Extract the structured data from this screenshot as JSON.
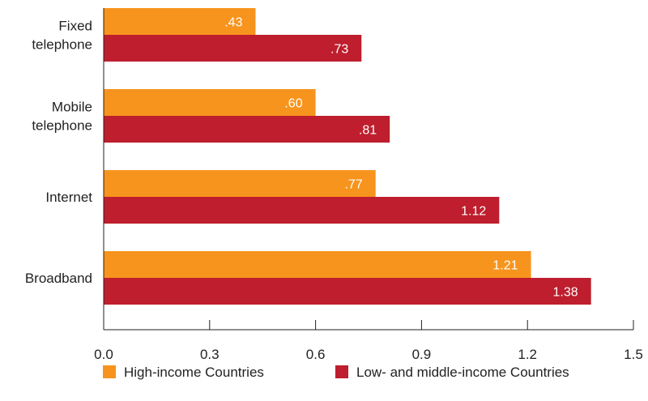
{
  "chart_data": {
    "type": "bar",
    "orientation": "horizontal",
    "categories": [
      [
        "Fixed",
        "telephone"
      ],
      [
        "Mobile",
        "telephone"
      ],
      [
        "Internet"
      ],
      [
        "Broadband"
      ]
    ],
    "series": [
      {
        "name": "High-income Countries",
        "color": "#F7941D",
        "values": [
          0.43,
          0.6,
          0.77,
          1.21
        ],
        "labels": [
          ".43",
          ".60",
          ".77",
          "1.21"
        ]
      },
      {
        "name": "Low- and middle-income Countries",
        "color": "#BE1E2D",
        "values": [
          0.73,
          0.81,
          1.12,
          1.38
        ],
        "labels": [
          ".73",
          ".81",
          "1.12",
          "1.38"
        ]
      }
    ],
    "xlim": [
      0,
      1.5
    ],
    "xticks": [
      0,
      0.3,
      0.6,
      0.9,
      1.2,
      1.5
    ],
    "xtick_labels": [
      "0.0",
      "0.3",
      "0.6",
      "0.9",
      "1.2",
      "1.5"
    ],
    "grid": false,
    "legend_position": "bottom"
  }
}
